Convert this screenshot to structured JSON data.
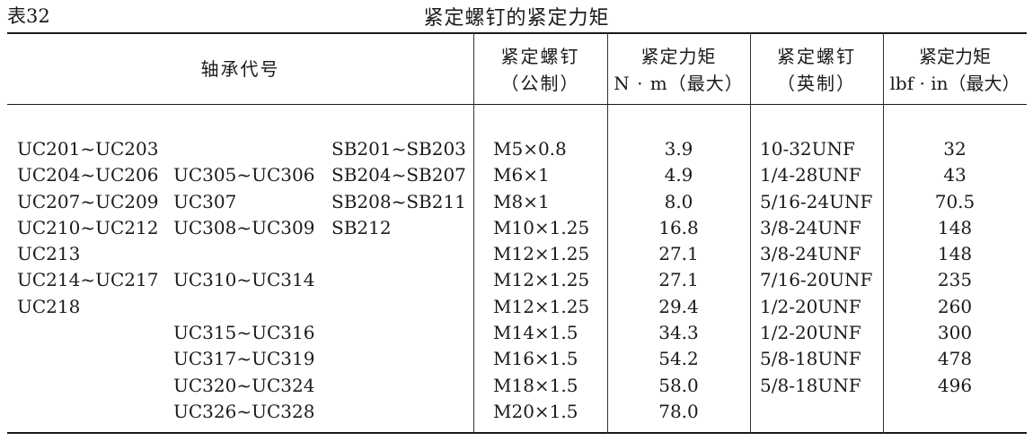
{
  "caption": {
    "table_no": "表32",
    "title": "紧定螺钉的紧定力矩"
  },
  "headers": {
    "bearing_code": "轴承代号",
    "metric_screw_l1": "紧定螺钉",
    "metric_screw_l2": "（公制）",
    "metric_torque_l1": "紧定力矩",
    "metric_torque_l2": "N · m（最大）",
    "imperial_screw_l1": "紧定螺钉",
    "imperial_screw_l2": "（英制）",
    "imperial_torque_l1": "紧定力矩",
    "imperial_torque_l2": "lbf · in（最大）"
  },
  "rows": [
    {
      "uc2": "UC201~UC203",
      "uc3": "",
      "sb": "SB201~SB203",
      "metric_screw": "M5×0.8",
      "metric_torque": "3.9",
      "imperial_screw": "10-32UNF",
      "imperial_torque": "32"
    },
    {
      "uc2": "UC204~UC206",
      "uc3": "UC305~UC306",
      "sb": "SB204~SB207",
      "metric_screw": "M6×1",
      "metric_torque": "4.9",
      "imperial_screw": "1/4-28UNF",
      "imperial_torque": "43"
    },
    {
      "uc2": "UC207~UC209",
      "uc3": "UC307",
      "sb": "SB208~SB211",
      "metric_screw": "M8×1",
      "metric_torque": "8.0",
      "imperial_screw": "5/16-24UNF",
      "imperial_torque": "70.5"
    },
    {
      "uc2": "UC210~UC212",
      "uc3": "UC308~UC309",
      "sb": "SB212",
      "metric_screw": "M10×1.25",
      "metric_torque": "16.8",
      "imperial_screw": "3/8-24UNF",
      "imperial_torque": "148"
    },
    {
      "uc2": "UC213",
      "uc3": "",
      "sb": "",
      "metric_screw": "M12×1.25",
      "metric_torque": "27.1",
      "imperial_screw": "3/8-24UNF",
      "imperial_torque": "148"
    },
    {
      "uc2": "UC214~UC217",
      "uc3": "UC310~UC314",
      "sb": "",
      "metric_screw": "M12×1.25",
      "metric_torque": "27.1",
      "imperial_screw": "7/16-20UNF",
      "imperial_torque": "235"
    },
    {
      "uc2": "UC218",
      "uc3": "",
      "sb": "",
      "metric_screw": "M12×1.25",
      "metric_torque": "29.4",
      "imperial_screw": "1/2-20UNF",
      "imperial_torque": "260"
    },
    {
      "uc2": "",
      "uc3": "UC315~UC316",
      "sb": "",
      "metric_screw": "M14×1.5",
      "metric_torque": "34.3",
      "imperial_screw": "1/2-20UNF",
      "imperial_torque": "300"
    },
    {
      "uc2": "",
      "uc3": "UC317~UC319",
      "sb": "",
      "metric_screw": "M16×1.5",
      "metric_torque": "54.2",
      "imperial_screw": "5/8-18UNF",
      "imperial_torque": "478"
    },
    {
      "uc2": "",
      "uc3": "UC320~UC324",
      "sb": "",
      "metric_screw": "M18×1.5",
      "metric_torque": "58.0",
      "imperial_screw": "5/8-18UNF",
      "imperial_torque": "496"
    },
    {
      "uc2": "",
      "uc3": "UC326~UC328",
      "sb": "",
      "metric_screw": "M20×1.5",
      "metric_torque": "78.0",
      "imperial_screw": "",
      "imperial_torque": ""
    }
  ]
}
